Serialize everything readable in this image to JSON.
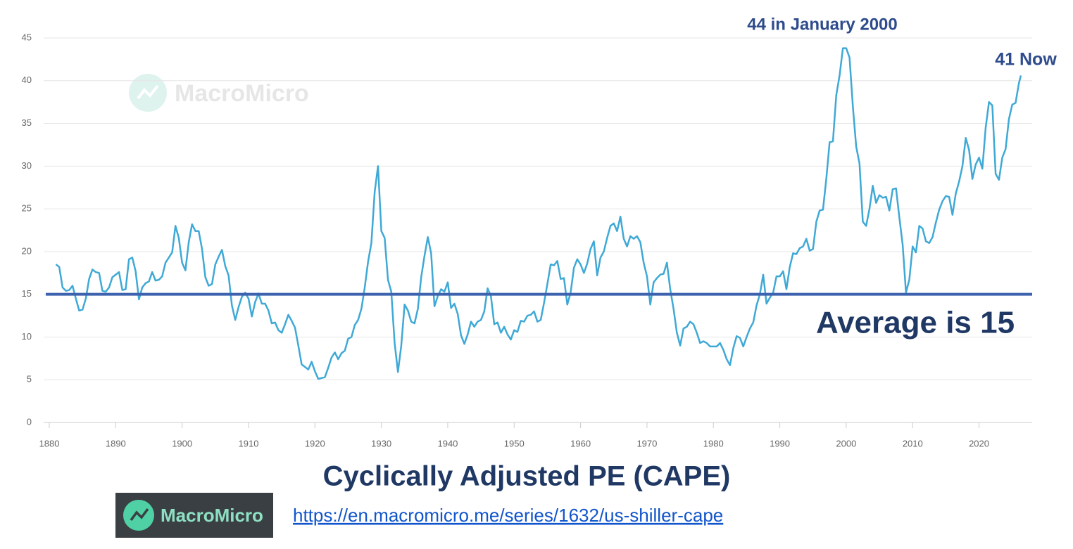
{
  "chart_data": {
    "type": "line",
    "title": "Cyclically Adjusted PE (CAPE)",
    "annotations": [
      "44 in January 2000",
      "41 Now"
    ],
    "reference_line": {
      "value": 15,
      "label": "Average is 15",
      "color": "#3d62ae"
    },
    "xlim": [
      1880,
      2028
    ],
    "xticks": [
      1880,
      1890,
      1900,
      1910,
      1920,
      1930,
      1940,
      1950,
      1960,
      1970,
      1980,
      1990,
      2000,
      2010,
      2020
    ],
    "ylim": [
      0,
      45
    ],
    "yticks": [
      0,
      5,
      10,
      15,
      20,
      25,
      30,
      35,
      40,
      45
    ],
    "grid": true,
    "x": [
      1881,
      1881.5,
      1882,
      1882.5,
      1883,
      1883.5,
      1884,
      1884.5,
      1885,
      1885.5,
      1886,
      1886.5,
      1887,
      1887.5,
      1888,
      1888.5,
      1889,
      1889.5,
      1890,
      1890.5,
      1891,
      1891.5,
      1892,
      1892.5,
      1893,
      1893.5,
      1894,
      1894.5,
      1895,
      1895.5,
      1896,
      1896.5,
      1897,
      1897.5,
      1898,
      1898.5,
      1899,
      1899.5,
      1900,
      1900.5,
      1901,
      1901.5,
      1902,
      1902.5,
      1903,
      1903.5,
      1904,
      1904.5,
      1905,
      1905.5,
      1906,
      1906.5,
      1907,
      1907.5,
      1908,
      1908.5,
      1909,
      1909.5,
      1910,
      1910.5,
      1911,
      1911.5,
      1912,
      1912.5,
      1913,
      1913.5,
      1914,
      1914.5,
      1915,
      1915.5,
      1916,
      1916.5,
      1917,
      1917.5,
      1918,
      1918.5,
      1919,
      1919.5,
      1920,
      1920.5,
      1921,
      1921.5,
      1922,
      1922.5,
      1923,
      1923.5,
      1924,
      1924.5,
      1925,
      1925.5,
      1926,
      1926.5,
      1927,
      1927.5,
      1928,
      1928.5,
      1929,
      1929.5,
      1930,
      1930.5,
      1931,
      1931.5,
      1932,
      1932.5,
      1933,
      1933.5,
      1934,
      1934.5,
      1935,
      1935.5,
      1936,
      1936.5,
      1937,
      1937.5,
      1938,
      1938.5,
      1939,
      1939.5,
      1940,
      1940.5,
      1941,
      1941.5,
      1942,
      1942.5,
      1943,
      1943.5,
      1944,
      1944.5,
      1945,
      1945.5,
      1946,
      1946.5,
      1947,
      1947.5,
      1948,
      1948.5,
      1949,
      1949.5,
      1950,
      1950.5,
      1951,
      1951.5,
      1952,
      1952.5,
      1953,
      1953.5,
      1954,
      1954.5,
      1955,
      1955.5,
      1956,
      1956.5,
      1957,
      1957.5,
      1958,
      1958.5,
      1959,
      1959.5,
      1960,
      1960.5,
      1961,
      1961.5,
      1962,
      1962.5,
      1963,
      1963.5,
      1964,
      1964.5,
      1965,
      1965.5,
      1966,
      1966.5,
      1967,
      1967.5,
      1968,
      1968.5,
      1969,
      1969.5,
      1970,
      1970.5,
      1971,
      1971.5,
      1972,
      1972.5,
      1973,
      1973.5,
      1974,
      1974.5,
      1975,
      1975.5,
      1976,
      1976.5,
      1977,
      1977.5,
      1978,
      1978.5,
      1979,
      1979.5,
      1980,
      1980.5,
      1981,
      1981.5,
      1982,
      1982.5,
      1983,
      1983.5,
      1984,
      1984.5,
      1985,
      1985.5,
      1986,
      1986.5,
      1987,
      1987.5,
      1988,
      1988.5,
      1989,
      1989.5,
      1990,
      1990.5,
      1991,
      1991.5,
      1992,
      1992.5,
      1993,
      1993.5,
      1994,
      1994.5,
      1995,
      1995.5,
      1996,
      1996.5,
      1997,
      1997.5,
      1998,
      1998.5,
      1999,
      1999.5,
      2000,
      2000.5,
      2001,
      2001.5,
      2002,
      2002.5,
      2003,
      2003.5,
      2004,
      2004.5,
      2005,
      2005.5,
      2006,
      2006.5,
      2007,
      2007.5,
      2008,
      2008.5,
      2009,
      2009.5,
      2010,
      2010.5,
      2011,
      2011.5,
      2012,
      2012.5,
      2013,
      2013.5,
      2014,
      2014.5,
      2015,
      2015.5,
      2016,
      2016.5,
      2017,
      2017.5,
      2018,
      2018.5,
      2019,
      2019.5,
      2020,
      2020.5,
      2021,
      2021.5,
      2022,
      2022.5,
      2023,
      2023.5,
      2024,
      2024.5,
      2025,
      2025.5,
      2026,
      2026.3
    ],
    "series": [
      {
        "color": "#3fa9d6",
        "values": [
          18.5,
          18.2,
          15.8,
          15.4,
          15.5,
          16,
          14.5,
          13.1,
          13.2,
          14.5,
          16.8,
          17.9,
          17.6,
          17.5,
          15.4,
          15.3,
          15.8,
          17,
          17.3,
          17.6,
          15.5,
          15.6,
          19.1,
          19.3,
          17.7,
          14.4,
          15.8,
          16.3,
          16.5,
          17.6,
          16.6,
          16.7,
          17.1,
          18.7,
          19.3,
          19.9,
          23,
          21.6,
          18.7,
          17.8,
          21.1,
          23.2,
          22.4,
          22.4,
          20.3,
          17,
          16,
          16.2,
          18.5,
          19.4,
          20.2,
          18.3,
          17.2,
          13.7,
          12,
          13.5,
          14.7,
          15.2,
          14.5,
          12.4,
          14.1,
          15.1,
          13.9,
          13.9,
          13.1,
          11.6,
          11.7,
          10.8,
          10.5,
          11.5,
          12.6,
          11.9,
          11.1,
          9,
          6.8,
          6.5,
          6.2,
          7.1,
          6,
          5.1,
          5.2,
          5.3,
          6.4,
          7.6,
          8.2,
          7.4,
          8.1,
          8.4,
          9.8,
          10,
          11.4,
          12,
          13.3,
          15.8,
          18.8,
          21,
          27,
          30,
          22.4,
          21.6,
          16.7,
          15.3,
          9.3,
          5.9,
          9,
          13.8,
          13.1,
          11.8,
          11.6,
          13.3,
          17,
          19.5,
          21.7,
          19.8,
          13.6,
          14.8,
          15.6,
          15.3,
          16.4,
          13.4,
          13.9,
          12.7,
          10.2,
          9.2,
          10.3,
          11.8,
          11.2,
          11.8,
          12,
          13,
          15.7,
          14.8,
          11.5,
          11.7,
          10.5,
          11.2,
          10.3,
          9.7,
          10.8,
          10.6,
          11.9,
          11.8,
          12.5,
          12.6,
          13,
          11.8,
          12,
          14,
          16.2,
          18.5,
          18.4,
          18.9,
          16.8,
          16.9,
          13.8,
          15.2,
          18.1,
          19.1,
          18.5,
          17.5,
          18.6,
          20.3,
          21.2,
          17.2,
          19.3,
          20,
          21.6,
          23,
          23.3,
          22.4,
          24.1,
          21.5,
          20.6,
          21.8,
          21.5,
          21.8,
          21.1,
          18.7,
          17.1,
          13.8,
          16.4,
          16.9,
          17.3,
          17.4,
          18.7,
          15.6,
          13.3,
          10.5,
          9,
          11,
          11.2,
          11.8,
          11.5,
          10.5,
          9.3,
          9.5,
          9.3,
          8.9,
          8.9,
          8.9,
          9.3,
          8.5,
          7.4,
          6.7,
          8.7,
          10.1,
          9.9,
          8.9,
          10,
          11,
          11.7,
          13.7,
          15,
          17.3,
          13.9,
          14.6,
          15.2,
          17.1,
          17.1,
          17.7,
          15.6,
          18.2,
          19.8,
          19.7,
          20.4,
          20.6,
          21.5,
          20.1,
          20.3,
          23.5,
          24.8,
          24.9,
          28.5,
          32.8,
          32.9,
          38.3,
          40.6,
          43.8,
          43.8,
          42.7,
          37,
          32.3,
          30.3,
          23.5,
          23,
          25,
          27.7,
          25.7,
          26.6,
          26.3,
          26.4,
          24.8,
          27.3,
          27.4,
          24,
          20.8,
          15.2,
          16.7,
          20.6,
          19.9,
          23,
          22.7,
          21.2,
          21,
          21.7,
          23.4,
          24.9,
          25.9,
          26.5,
          26.4,
          24.3,
          26.8,
          28.2,
          30,
          33.3,
          31.9,
          28.5,
          30.2,
          31,
          29.7,
          34.5,
          37.5,
          37.1,
          29.1,
          28.4,
          31,
          32,
          35.5,
          37.2,
          37.4,
          39.7,
          40.6
        ]
      }
    ]
  },
  "watermark": "MacroMicro",
  "logo": {
    "text": "MacroMicro"
  },
  "source_url": "https://en.macromicro.me/series/1632/us-shiller-cape"
}
